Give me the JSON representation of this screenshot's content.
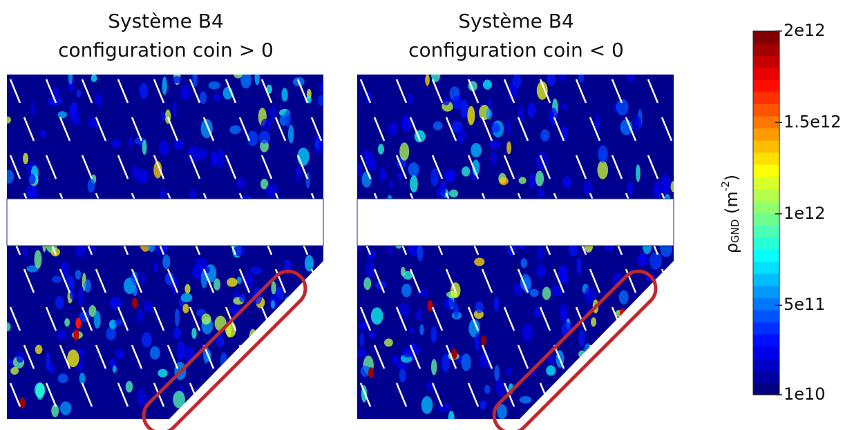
{
  "panels": [
    {
      "title_line1": "Système B4",
      "title_line2": "configuration coin > 0"
    },
    {
      "title_line1": "Système B4",
      "title_line2": "configuration coin < 0"
    }
  ],
  "colorbar": {
    "clim": [
      {
        "value": 10000000000,
        "label": "1e10"
      },
      {
        "value": 2000000000000,
        "label": "2e12"
      }
    ],
    "ticks": [
      {
        "value": 10000000000,
        "label": "1e10"
      },
      {
        "value": 500000000000,
        "label": "5e11"
      },
      {
        "value": 1000000000000,
        "label": "1e12"
      },
      {
        "value": 1500000000000,
        "label": "1.5e12"
      },
      {
        "value": 2000000000000,
        "label": "2e12"
      }
    ],
    "label": {
      "symbol": "ρ",
      "subscript": "GND",
      "unit": " (m",
      "exponent": "-2",
      "close": ")"
    }
  }
}
